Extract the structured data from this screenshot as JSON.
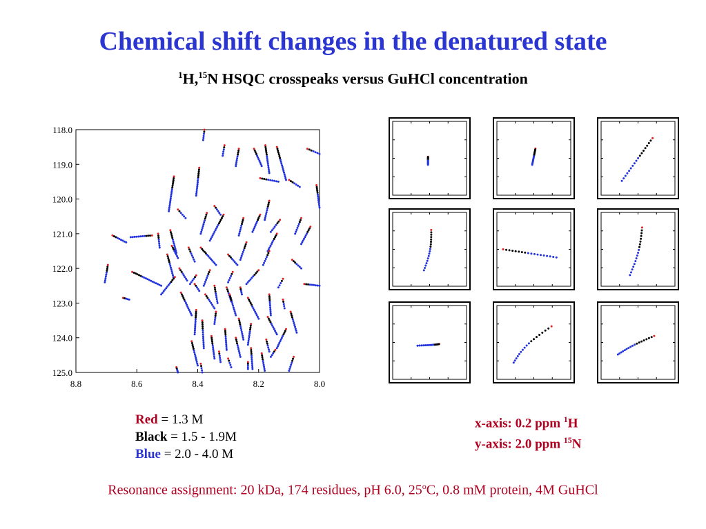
{
  "slide": {
    "title": "Chemical shift changes in the denatured state",
    "subtitle_iso1": "1",
    "subtitle_part1": "H,",
    "subtitle_iso2": "15",
    "subtitle_part2": "N HSQC crosspeaks versus GuHCl concentration"
  },
  "legend": {
    "red_key": "Red",
    "red_value": " = 1.3 M",
    "black_key": "Black",
    "black_value": " = 1.5 - 1.9M",
    "blue_key": "Blue",
    "blue_value": " = 2.0 - 4.0 M"
  },
  "axis_notes": {
    "x_text": "x-axis: 0.2 ppm ",
    "x_sup": "1",
    "x_nucleus": "H",
    "y_text": "y-axis: 2.0 ppm ",
    "y_sup": "15",
    "y_nucleus": "N"
  },
  "footer": {
    "text": "Resonance assignment: 20 kDa, 174 residues, pH 6.0, 25",
    "degree": "o",
    "text_end": "C, 0.8 mM protein, 4M GuHCl"
  },
  "colors": {
    "red": "#e02020",
    "black": "#000000",
    "blue": "#2233dd",
    "title": "#2b35d0",
    "accent_red": "#b00020"
  },
  "chart_data": [
    {
      "type": "scatter",
      "title": "",
      "xlabel": "",
      "ylabel": "",
      "x_reversed": true,
      "xlim": [
        8.0,
        8.8
      ],
      "ylim": [
        118.0,
        125.0
      ],
      "x_ticks": [
        "8.8",
        "8.6",
        "8.4",
        "8.2",
        "8.0"
      ],
      "y_ticks": [
        "118.0",
        "119.0",
        "120.0",
        "121.0",
        "122.0",
        "123.0",
        "124.0",
        "125.0"
      ],
      "series_colors": [
        "red",
        "black",
        "blue"
      ],
      "traces": [
        {
          "start": [
            8.378,
            118.0
          ],
          "end": [
            8.382,
            118.3
          ]
        },
        {
          "start": [
            8.312,
            118.45
          ],
          "end": [
            8.318,
            118.75
          ]
        },
        {
          "start": [
            8.265,
            118.55
          ],
          "end": [
            8.275,
            119.05
          ]
        },
        {
          "start": [
            8.14,
            118.5
          ],
          "end": [
            8.11,
            119.45
          ]
        },
        {
          "start": [
            8.215,
            118.55
          ],
          "end": [
            8.19,
            119.05
          ]
        },
        {
          "start": [
            8.178,
            118.45
          ],
          "end": [
            8.165,
            119.25
          ]
        },
        {
          "start": [
            8.04,
            118.55
          ],
          "end": [
            8.0,
            118.7
          ]
        },
        {
          "start": [
            8.395,
            119.1
          ],
          "end": [
            8.405,
            119.9
          ]
        },
        {
          "start": [
            8.478,
            119.35
          ],
          "end": [
            8.495,
            120.35
          ]
        },
        {
          "start": [
            8.195,
            119.4
          ],
          "end": [
            8.135,
            119.5
          ]
        },
        {
          "start": [
            8.1,
            119.45
          ],
          "end": [
            8.065,
            119.65
          ]
        },
        {
          "start": [
            8.01,
            119.6
          ],
          "end": [
            8.0,
            120.25
          ]
        },
        {
          "start": [
            8.165,
            120.05
          ],
          "end": [
            8.18,
            120.6
          ]
        },
        {
          "start": [
            8.345,
            120.2
          ],
          "end": [
            8.325,
            120.45
          ]
        },
        {
          "start": [
            8.465,
            120.3
          ],
          "end": [
            8.44,
            120.55
          ]
        },
        {
          "start": [
            8.37,
            120.4
          ],
          "end": [
            8.39,
            121.0
          ]
        },
        {
          "start": [
            8.315,
            120.45
          ],
          "end": [
            8.36,
            121.2
          ]
        },
        {
          "start": [
            8.25,
            120.55
          ],
          "end": [
            8.265,
            121.05
          ]
        },
        {
          "start": [
            8.195,
            120.45
          ],
          "end": [
            8.22,
            120.95
          ]
        },
        {
          "start": [
            8.13,
            120.6
          ],
          "end": [
            8.16,
            120.95
          ]
        },
        {
          "start": [
            8.06,
            120.55
          ],
          "end": [
            8.08,
            121.0
          ]
        },
        {
          "start": [
            8.03,
            120.8
          ],
          "end": [
            8.06,
            121.3
          ]
        },
        {
          "start": [
            8.49,
            120.9
          ],
          "end": [
            8.47,
            121.55
          ]
        },
        {
          "start": [
            8.53,
            121.0
          ],
          "end": [
            8.525,
            121.4
          ]
        },
        {
          "start": [
            8.24,
            121.25
          ],
          "end": [
            8.26,
            121.75
          ]
        },
        {
          "start": [
            8.14,
            121.0
          ],
          "end": [
            8.17,
            121.5
          ]
        },
        {
          "start": [
            8.55,
            121.05
          ],
          "end": [
            8.62,
            121.1
          ]
        },
        {
          "start": [
            8.68,
            121.05
          ],
          "end": [
            8.635,
            121.25
          ]
        },
        {
          "start": [
            8.43,
            121.4
          ],
          "end": [
            8.41,
            121.8
          ]
        },
        {
          "start": [
            8.485,
            121.35
          ],
          "end": [
            8.465,
            121.7
          ]
        },
        {
          "start": [
            8.39,
            121.4
          ],
          "end": [
            8.34,
            121.9
          ]
        },
        {
          "start": [
            8.3,
            121.6
          ],
          "end": [
            8.27,
            121.9
          ]
        },
        {
          "start": [
            8.165,
            121.5
          ],
          "end": [
            8.185,
            121.9
          ]
        },
        {
          "start": [
            8.09,
            121.75
          ],
          "end": [
            8.06,
            122.0
          ]
        },
        {
          "start": [
            8.5,
            121.6
          ],
          "end": [
            8.48,
            122.25
          ]
        },
        {
          "start": [
            8.695,
            121.9
          ],
          "end": [
            8.705,
            122.4
          ]
        },
        {
          "start": [
            8.615,
            122.1
          ],
          "end": [
            8.52,
            122.5
          ]
        },
        {
          "start": [
            8.05,
            122.45
          ],
          "end": [
            8.0,
            122.5
          ]
        },
        {
          "start": [
            8.46,
            122.0
          ],
          "end": [
            8.435,
            122.35
          ]
        },
        {
          "start": [
            8.36,
            122.05
          ],
          "end": [
            8.38,
            122.5
          ]
        },
        {
          "start": [
            8.285,
            122.1
          ],
          "end": [
            8.3,
            122.4
          ]
        },
        {
          "start": [
            8.2,
            122.05
          ],
          "end": [
            8.24,
            122.45
          ]
        },
        {
          "start": [
            8.475,
            122.25
          ],
          "end": [
            8.52,
            122.75
          ]
        },
        {
          "start": [
            8.12,
            122.3
          ],
          "end": [
            8.135,
            122.55
          ]
        },
        {
          "start": [
            8.405,
            122.2
          ],
          "end": [
            8.425,
            122.45
          ]
        },
        {
          "start": [
            8.345,
            122.5
          ],
          "end": [
            8.335,
            123.0
          ]
        },
        {
          "start": [
            8.305,
            122.55
          ],
          "end": [
            8.29,
            122.95
          ]
        },
        {
          "start": [
            8.41,
            122.45
          ],
          "end": [
            8.395,
            122.65
          ]
        },
        {
          "start": [
            8.26,
            122.55
          ],
          "end": [
            8.255,
            122.75
          ]
        },
        {
          "start": [
            8.455,
            122.7
          ],
          "end": [
            8.42,
            123.35
          ]
        },
        {
          "start": [
            8.375,
            122.75
          ],
          "end": [
            8.345,
            123.15
          ]
        },
        {
          "start": [
            8.295,
            122.75
          ],
          "end": [
            8.275,
            123.35
          ]
        },
        {
          "start": [
            8.235,
            122.85
          ],
          "end": [
            8.2,
            123.45
          ]
        },
        {
          "start": [
            8.165,
            122.75
          ],
          "end": [
            8.16,
            123.35
          ]
        },
        {
          "start": [
            8.12,
            122.9
          ],
          "end": [
            8.115,
            123.15
          ]
        },
        {
          "start": [
            8.645,
            122.85
          ],
          "end": [
            8.625,
            122.9
          ]
        },
        {
          "start": [
            8.095,
            123.25
          ],
          "end": [
            8.075,
            123.85
          ]
        },
        {
          "start": [
            8.405,
            123.2
          ],
          "end": [
            8.41,
            123.9
          ]
        },
        {
          "start": [
            8.34,
            123.25
          ],
          "end": [
            8.345,
            123.6
          ]
        },
        {
          "start": [
            8.265,
            123.45
          ],
          "end": [
            8.25,
            124.05
          ]
        },
        {
          "start": [
            8.17,
            123.4
          ],
          "end": [
            8.14,
            123.9
          ]
        },
        {
          "start": [
            8.225,
            123.6
          ],
          "end": [
            8.235,
            124.2
          ]
        },
        {
          "start": [
            8.385,
            123.5
          ],
          "end": [
            8.38,
            124.3
          ]
        },
        {
          "start": [
            8.11,
            123.75
          ],
          "end": [
            8.14,
            124.3
          ]
        },
        {
          "start": [
            8.31,
            123.75
          ],
          "end": [
            8.305,
            124.35
          ]
        },
        {
          "start": [
            8.355,
            123.95
          ],
          "end": [
            8.345,
            124.6
          ]
        },
        {
          "start": [
            8.275,
            124.0
          ],
          "end": [
            8.26,
            124.55
          ]
        },
        {
          "start": [
            8.175,
            124.05
          ],
          "end": [
            8.165,
            124.4
          ]
        },
        {
          "start": [
            8.42,
            124.1
          ],
          "end": [
            8.4,
            124.8
          ]
        },
        {
          "start": [
            8.225,
            124.3
          ],
          "end": [
            8.22,
            124.9
          ]
        },
        {
          "start": [
            8.145,
            124.35
          ],
          "end": [
            8.16,
            124.55
          ]
        },
        {
          "start": [
            8.33,
            124.4
          ],
          "end": [
            8.325,
            124.7
          ]
        },
        {
          "start": [
            8.085,
            124.55
          ],
          "end": [
            8.1,
            124.95
          ]
        },
        {
          "start": [
            8.19,
            124.45
          ],
          "end": [
            8.18,
            124.95
          ]
        },
        {
          "start": [
            8.3,
            124.6
          ],
          "end": [
            8.29,
            124.85
          ]
        },
        {
          "start": [
            8.47,
            124.85
          ],
          "end": [
            8.465,
            125.0
          ]
        },
        {
          "start": [
            8.39,
            124.75
          ],
          "end": [
            8.385,
            125.0
          ]
        },
        {
          "start": [
            8.235,
            124.7
          ],
          "end": [
            8.235,
            124.9
          ]
        }
      ]
    },
    {
      "type": "scatter",
      "title": "",
      "panels": [
        {
          "start": [
            0.48,
            0.48
          ],
          "end": [
            0.48,
            0.58
          ],
          "curve": 0
        },
        {
          "start": [
            0.52,
            0.38
          ],
          "end": [
            0.48,
            0.58
          ],
          "curve": 0
        },
        {
          "start": [
            0.68,
            0.25
          ],
          "end": [
            0.3,
            0.78
          ],
          "curve": 0
        },
        {
          "start": [
            0.52,
            0.26
          ],
          "end": [
            0.43,
            0.76
          ],
          "curve": 0.03
        },
        {
          "start": [
            0.12,
            0.5
          ],
          "end": [
            0.78,
            0.6
          ],
          "curve": 0
        },
        {
          "start": [
            0.55,
            0.23
          ],
          "end": [
            0.4,
            0.82
          ],
          "curve": 0.03
        },
        {
          "start": [
            0.62,
            0.52
          ],
          "end": [
            0.35,
            0.54
          ],
          "curve": 0.05
        },
        {
          "start": [
            0.72,
            0.3
          ],
          "end": [
            0.25,
            0.75
          ],
          "curve": -0.06
        },
        {
          "start": [
            0.7,
            0.42
          ],
          "end": [
            0.25,
            0.65
          ],
          "curve": -0.03
        }
      ]
    }
  ]
}
